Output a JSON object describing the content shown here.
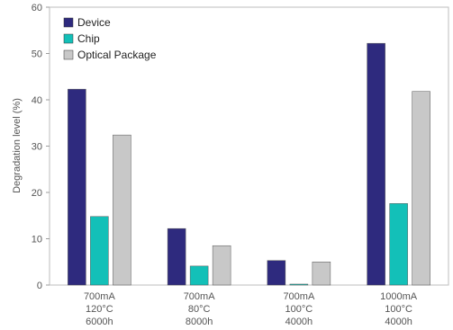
{
  "chart_data": {
    "type": "bar",
    "categories": [
      [
        "700mA",
        "120°C",
        "6000h"
      ],
      [
        "700mA",
        "80°C",
        "8000h"
      ],
      [
        "700mA",
        "100°C",
        "4000h"
      ],
      [
        "1000mA",
        "100°C",
        "4000h"
      ]
    ],
    "series": [
      {
        "name": "Device",
        "color": "#2e2a7e",
        "values": [
          42.3,
          12.2,
          5.3,
          52.2
        ]
      },
      {
        "name": "Chip",
        "color": "#13c0b8",
        "values": [
          14.8,
          4.1,
          0.2,
          17.6
        ]
      },
      {
        "name": "Optical Package",
        "color": "#c8c8c8",
        "values": [
          32.4,
          8.5,
          5.0,
          41.8
        ]
      }
    ],
    "ylabel": "Degradation level (%)",
    "xlabel": "",
    "ylim": [
      0,
      60
    ],
    "yticks": [
      0,
      10,
      20,
      30,
      40,
      50,
      60
    ],
    "grid": false,
    "legend_position": "top-left"
  }
}
